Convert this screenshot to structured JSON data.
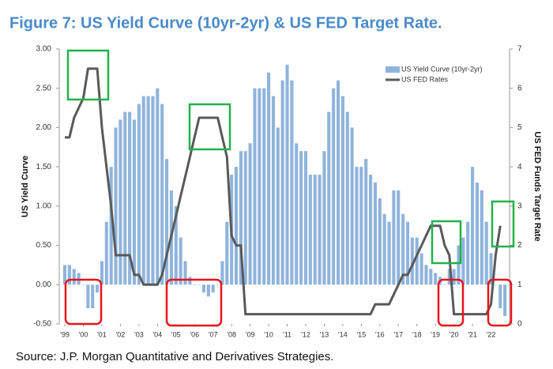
{
  "chart_data": {
    "type": "bar",
    "title": "Figure 7: US Yield Curve (10yr-2yr) & US FED Target Rate.",
    "source": "Source: J.P. Morgan Quantitative and Derivatives Strategies.",
    "ylabel": "US Yield Curve",
    "y2label": "US FED Funds Target Rate",
    "x": [
      1999,
      1999.25,
      1999.5,
      1999.75,
      2000,
      2000.25,
      2000.5,
      2000.75,
      2001,
      2001.25,
      2001.5,
      2001.75,
      2002,
      2002.25,
      2002.5,
      2002.75,
      2003,
      2003.25,
      2003.5,
      2003.75,
      2004,
      2004.25,
      2004.5,
      2004.75,
      2005,
      2005.25,
      2005.5,
      2005.75,
      2006,
      2006.25,
      2006.5,
      2006.75,
      2007,
      2007.25,
      2007.5,
      2007.75,
      2008,
      2008.25,
      2008.5,
      2008.75,
      2009,
      2009.25,
      2009.5,
      2009.75,
      2010,
      2010.25,
      2010.5,
      2010.75,
      2011,
      2011.25,
      2011.5,
      2011.75,
      2012,
      2012.25,
      2012.5,
      2012.75,
      2013,
      2013.25,
      2013.5,
      2013.75,
      2014,
      2014.25,
      2014.5,
      2014.75,
      2015,
      2015.25,
      2015.5,
      2015.75,
      2016,
      2016.25,
      2016.5,
      2016.75,
      2017,
      2017.25,
      2017.5,
      2017.75,
      2018,
      2018.25,
      2018.5,
      2018.75,
      2019,
      2019.25,
      2019.5,
      2019.75,
      2020,
      2020.25,
      2020.5,
      2020.75,
      2021,
      2021.25,
      2021.5,
      2021.75,
      2022,
      2022.25,
      2022.5,
      2022.75
    ],
    "series": [
      {
        "name": "US Yield Curve (10yr-2yr)",
        "color": "#8fb4dc",
        "type": "bar",
        "values": [
          0.25,
          0.25,
          0.2,
          0.15,
          0.0,
          -0.3,
          -0.3,
          -0.1,
          0.3,
          0.8,
          1.5,
          2.0,
          2.1,
          2.2,
          2.2,
          2.1,
          2.3,
          2.4,
          2.4,
          2.4,
          2.5,
          2.3,
          1.6,
          1.2,
          1.0,
          0.6,
          0.3,
          0.1,
          0.0,
          0.0,
          -0.1,
          -0.15,
          -0.1,
          0.0,
          0.3,
          0.8,
          1.4,
          1.5,
          1.7,
          1.7,
          1.8,
          2.5,
          2.5,
          2.5,
          2.7,
          2.4,
          2.0,
          2.6,
          2.8,
          2.6,
          1.8,
          1.7,
          1.7,
          1.4,
          1.4,
          1.4,
          1.7,
          2.2,
          2.5,
          2.6,
          2.4,
          2.2,
          2.0,
          1.5,
          1.5,
          1.6,
          1.4,
          1.3,
          1.1,
          0.9,
          0.8,
          1.2,
          1.2,
          0.9,
          0.8,
          0.6,
          0.6,
          0.4,
          0.25,
          0.2,
          0.15,
          0.1,
          0.0,
          0.2,
          0.2,
          0.5,
          0.6,
          0.8,
          1.5,
          1.3,
          1.2,
          0.8,
          0.4,
          0.0,
          -0.3,
          -0.4
        ]
      },
      {
        "name": "US FED Rates",
        "color": "#595959",
        "type": "line",
        "axis": "y2",
        "values": [
          4.75,
          4.75,
          5.25,
          5.5,
          5.75,
          6.5,
          6.5,
          6.5,
          5.0,
          4.0,
          3.0,
          1.75,
          1.75,
          1.75,
          1.75,
          1.25,
          1.25,
          1.0,
          1.0,
          1.0,
          1.0,
          1.25,
          1.75,
          2.25,
          2.75,
          3.25,
          3.75,
          4.25,
          4.75,
          5.25,
          5.25,
          5.25,
          5.25,
          5.25,
          4.75,
          4.25,
          2.25,
          2.0,
          2.0,
          0.25,
          0.25,
          0.25,
          0.25,
          0.25,
          0.25,
          0.25,
          0.25,
          0.25,
          0.25,
          0.25,
          0.25,
          0.25,
          0.25,
          0.25,
          0.25,
          0.25,
          0.25,
          0.25,
          0.25,
          0.25,
          0.25,
          0.25,
          0.25,
          0.25,
          0.25,
          0.25,
          0.25,
          0.5,
          0.5,
          0.5,
          0.5,
          0.75,
          1.0,
          1.25,
          1.25,
          1.5,
          1.75,
          2.0,
          2.25,
          2.5,
          2.5,
          2.5,
          2.0,
          1.75,
          0.25,
          0.25,
          0.25,
          0.25,
          0.25,
          0.25,
          0.25,
          0.25,
          0.5,
          1.75,
          2.5,
          null
        ]
      }
    ],
    "xlim": [
      1998.7,
      2023.0
    ],
    "xticks": [
      {
        "value": 1999,
        "label": "'99"
      },
      {
        "value": 2000,
        "label": "'00"
      },
      {
        "value": 2001,
        "label": "'01"
      },
      {
        "value": 2002,
        "label": "'02"
      },
      {
        "value": 2003,
        "label": "'03"
      },
      {
        "value": 2004,
        "label": "'04"
      },
      {
        "value": 2005,
        "label": "'05"
      },
      {
        "value": 2006,
        "label": "'06"
      },
      {
        "value": 2007,
        "label": "'07"
      },
      {
        "value": 2008,
        "label": "'08"
      },
      {
        "value": 2009,
        "label": "'09"
      },
      {
        "value": 2010,
        "label": "'10"
      },
      {
        "value": 2011,
        "label": "'11"
      },
      {
        "value": 2012,
        "label": "'12"
      },
      {
        "value": 2013,
        "label": "'13"
      },
      {
        "value": 2014,
        "label": "'14"
      },
      {
        "value": 2015,
        "label": "'15"
      },
      {
        "value": 2016,
        "label": "'16"
      },
      {
        "value": 2017,
        "label": "'17"
      },
      {
        "value": 2018,
        "label": "'18"
      },
      {
        "value": 2019,
        "label": "'19"
      },
      {
        "value": 2020,
        "label": "'20"
      },
      {
        "value": 2021,
        "label": "'21"
      },
      {
        "value": 2022,
        "label": "'22"
      }
    ],
    "ylim": [
      -0.5,
      3.0
    ],
    "yticks": [
      {
        "value": -0.5,
        "label": "-0.50"
      },
      {
        "value": 0,
        "label": "0.00"
      },
      {
        "value": 0.5,
        "label": "0.50"
      },
      {
        "value": 1,
        "label": "1.00"
      },
      {
        "value": 1.5,
        "label": "1.50"
      },
      {
        "value": 2,
        "label": "2.00"
      },
      {
        "value": 2.5,
        "label": "2.50"
      },
      {
        "value": 3,
        "label": "3.00"
      }
    ],
    "y2lim": [
      0,
      7
    ],
    "y2ticks": [
      0,
      1,
      2,
      3,
      4,
      5,
      6,
      7
    ],
    "legend": "upper right"
  }
}
